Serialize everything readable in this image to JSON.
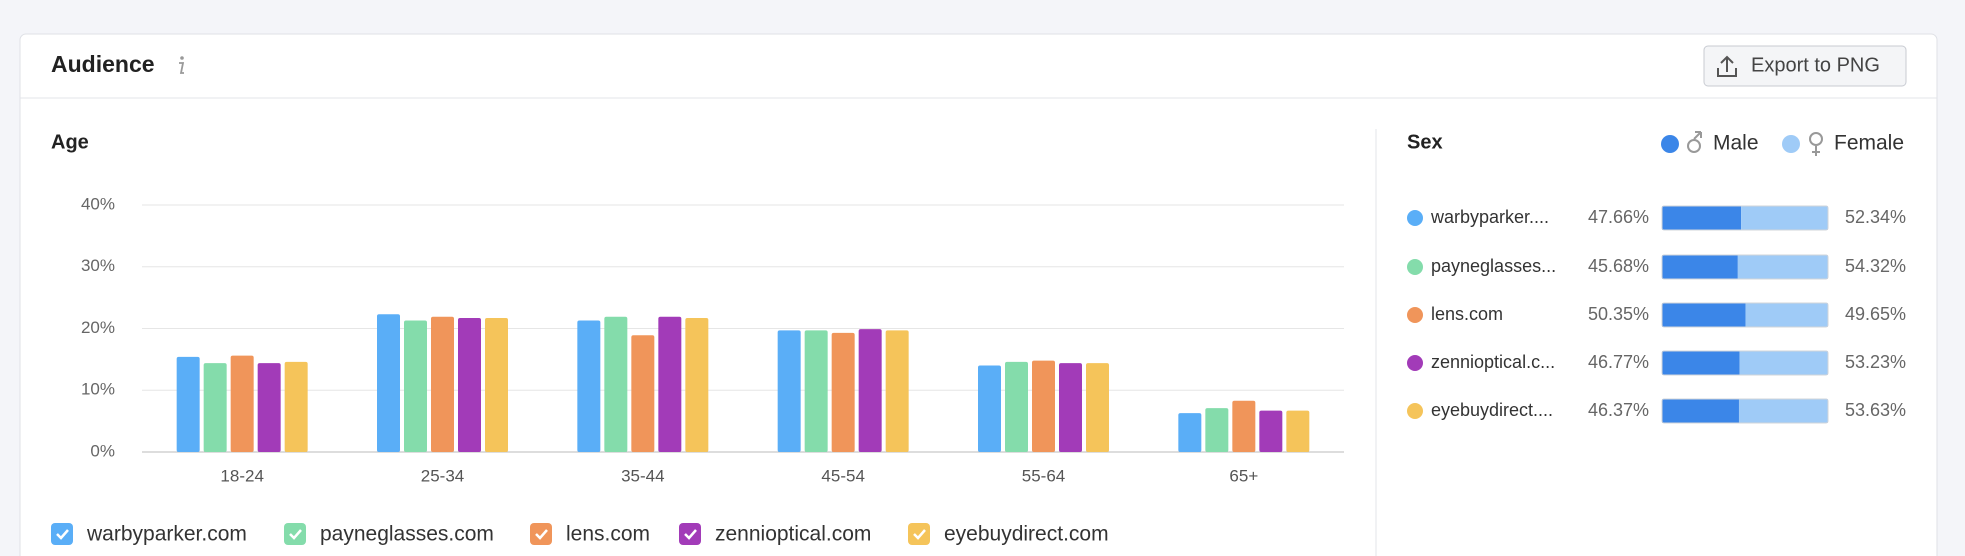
{
  "header": {
    "title": "Audience",
    "button": "Export to PNG"
  },
  "chart_data": [
    {
      "type": "bar",
      "title": "Age",
      "categories": [
        "18-24",
        "25-34",
        "35-44",
        "45-54",
        "55-64",
        "65+"
      ],
      "series": [
        {
          "name": "warbyparker.com",
          "color": "#5aaef7",
          "values": [
            15.4,
            22.3,
            21.3,
            19.7,
            14.0,
            6.3
          ]
        },
        {
          "name": "payneglasses.com",
          "color": "#84dcab",
          "values": [
            14.4,
            21.3,
            21.9,
            19.7,
            14.6,
            7.1
          ]
        },
        {
          "name": "lens.com",
          "color": "#f0955a",
          "values": [
            15.6,
            21.9,
            18.9,
            19.3,
            14.8,
            8.3
          ]
        },
        {
          "name": "zennioptical.com",
          "color": "#a23bb8",
          "values": [
            14.4,
            21.7,
            21.9,
            19.9,
            14.4,
            6.7
          ]
        },
        {
          "name": "eyebuydirect.com",
          "color": "#f5c45a",
          "values": [
            14.6,
            21.7,
            21.7,
            19.7,
            14.4,
            6.7
          ]
        }
      ],
      "ylim": [
        0,
        40
      ],
      "yticks": [
        {
          "value": 0,
          "label": "0%"
        },
        {
          "value": 10,
          "label": "10%"
        },
        {
          "value": 20,
          "label": "20%"
        },
        {
          "value": 30,
          "label": "30%"
        },
        {
          "value": 40,
          "label": "40%"
        }
      ],
      "grid": true
    },
    {
      "type": "stacked-hbar",
      "title": "Sex",
      "categories": [
        "warbyparker....",
        "payneglasses...",
        "lens.com",
        "zennioptical.c...",
        "eyebuydirect...."
      ],
      "category_colors": [
        "#5aaef7",
        "#84dcab",
        "#f0955a",
        "#a23bb8",
        "#f5c45a"
      ],
      "series": [
        {
          "name": "Male",
          "color": "#3b86e8",
          "values": [
            47.66,
            45.68,
            50.35,
            46.77,
            46.37
          ],
          "value_labels": [
            "47.66%",
            "45.68%",
            "50.35%",
            "46.77%",
            "46.37%"
          ]
        },
        {
          "name": "Female",
          "color": "#9fcbf7",
          "values": [
            52.34,
            54.32,
            49.65,
            53.23,
            53.63
          ],
          "value_labels": [
            "52.34%",
            "54.32%",
            "49.65%",
            "53.23%",
            "53.63%"
          ]
        }
      ]
    }
  ]
}
